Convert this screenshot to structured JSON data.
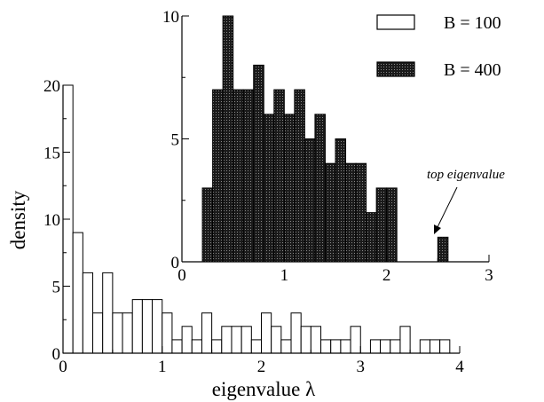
{
  "chart_data": [
    {
      "type": "bar",
      "role": "main",
      "xlabel": "eigenvalue λ",
      "ylabel": "density",
      "xlim": [
        0,
        4
      ],
      "ylim": [
        0,
        20
      ],
      "xticks": [
        "0",
        "1",
        "2",
        "3",
        "4"
      ],
      "yticks": [
        "0",
        "5",
        "10",
        "15",
        "20"
      ],
      "bin_width": 0.1,
      "bin_start": 0,
      "series": [
        {
          "name": "B = 100",
          "fill": "#ffffff",
          "values": [
            20,
            9,
            6,
            3,
            6,
            3,
            3,
            4,
            4,
            4,
            3,
            1,
            2,
            1,
            3,
            1,
            2,
            2,
            2,
            1,
            3,
            2,
            1,
            3,
            2,
            2,
            1,
            1,
            1,
            2,
            0,
            1,
            1,
            1,
            2,
            0,
            1,
            1,
            1,
            0
          ]
        }
      ]
    },
    {
      "type": "bar",
      "role": "inset",
      "xlim": [
        0,
        3
      ],
      "ylim": [
        0,
        10
      ],
      "xticks": [
        "0",
        "1",
        "2",
        "3"
      ],
      "yticks": [
        "0",
        "5",
        "10"
      ],
      "bin_width": 0.1,
      "bin_start": 0.2,
      "series": [
        {
          "name": "B = 400",
          "fill": "#222222",
          "values": [
            3,
            7,
            10,
            7,
            7,
            8,
            6,
            7,
            6,
            7,
            5,
            6,
            4,
            5,
            4,
            4,
            2,
            3,
            3,
            0,
            0,
            0,
            0,
            1
          ]
        }
      ],
      "annotation": {
        "text": "top eigenvalue",
        "x": 2.45,
        "y": 1
      }
    }
  ],
  "legend": [
    {
      "label": "B = 100",
      "fill": "#ffffff"
    },
    {
      "label": "B = 400",
      "fill": "#222222"
    }
  ]
}
